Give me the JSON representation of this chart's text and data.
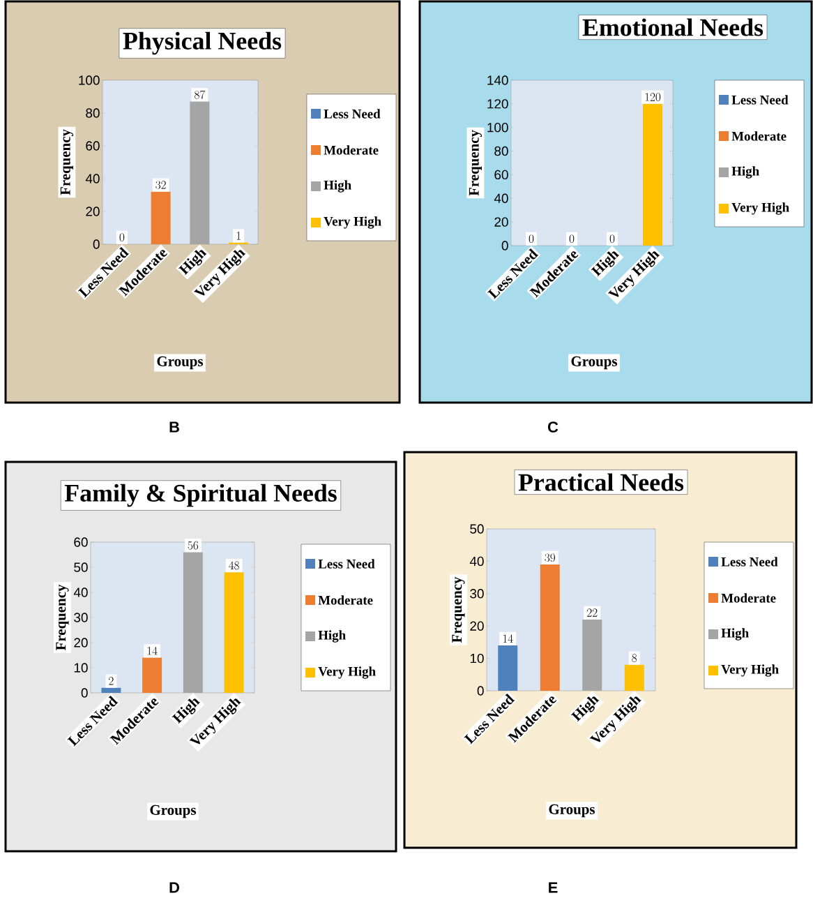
{
  "chart_data": [
    {
      "type": "bar",
      "title": "Physical Needs",
      "xlabel": "Groups",
      "ylabel": "Frequency",
      "categories": [
        "Less Need",
        "Moderate",
        "High",
        "Very High"
      ],
      "values": [
        0,
        32,
        87,
        1
      ],
      "colors": [
        "#4f81bd",
        "#ed7d31",
        "#a5a5a5",
        "#ffc000"
      ],
      "ylim": [
        0,
        100
      ],
      "yticks": [
        0,
        20,
        40,
        60,
        80,
        100
      ],
      "data_labels": true,
      "annotations": [
        "B"
      ]
    },
    {
      "type": "bar",
      "title": "Emotional Needs",
      "xlabel": "Groups",
      "ylabel": "Frequency",
      "categories": [
        "Less Need",
        "Moderate",
        "High",
        "Very High"
      ],
      "values": [
        0,
        0,
        0,
        120
      ],
      "colors": [
        "#4f81bd",
        "#ed7d31",
        "#a5a5a5",
        "#ffc000"
      ],
      "ylim": [
        0,
        140
      ],
      "yticks": [
        0,
        20,
        40,
        60,
        80,
        100,
        120,
        140
      ],
      "data_labels": true,
      "annotations": [
        "C"
      ]
    },
    {
      "type": "bar",
      "title": "Family & Spiritual Needs",
      "xlabel": "Groups",
      "ylabel": "Frequency",
      "categories": [
        "Less Need",
        "Moderate",
        "High",
        "Very High"
      ],
      "values": [
        2,
        14,
        56,
        48
      ],
      "colors": [
        "#4f81bd",
        "#ed7d31",
        "#a5a5a5",
        "#ffc000"
      ],
      "ylim": [
        0,
        60
      ],
      "yticks": [
        0,
        10,
        20,
        30,
        40,
        50,
        60
      ],
      "data_labels": true,
      "annotations": [
        "D"
      ]
    },
    {
      "type": "bar",
      "title": "Practical Needs",
      "xlabel": "Groups",
      "ylabel": "Frequency",
      "categories": [
        "Less Need",
        "Moderate",
        "High",
        "Very High"
      ],
      "values": [
        14,
        39,
        22,
        8
      ],
      "colors": [
        "#4f81bd",
        "#ed7d31",
        "#a5a5a5",
        "#ffc000"
      ],
      "ylim": [
        0,
        50
      ],
      "yticks": [
        0,
        10,
        20,
        30,
        40,
        50
      ],
      "data_labels": true,
      "annotations": [
        "E"
      ]
    }
  ]
}
